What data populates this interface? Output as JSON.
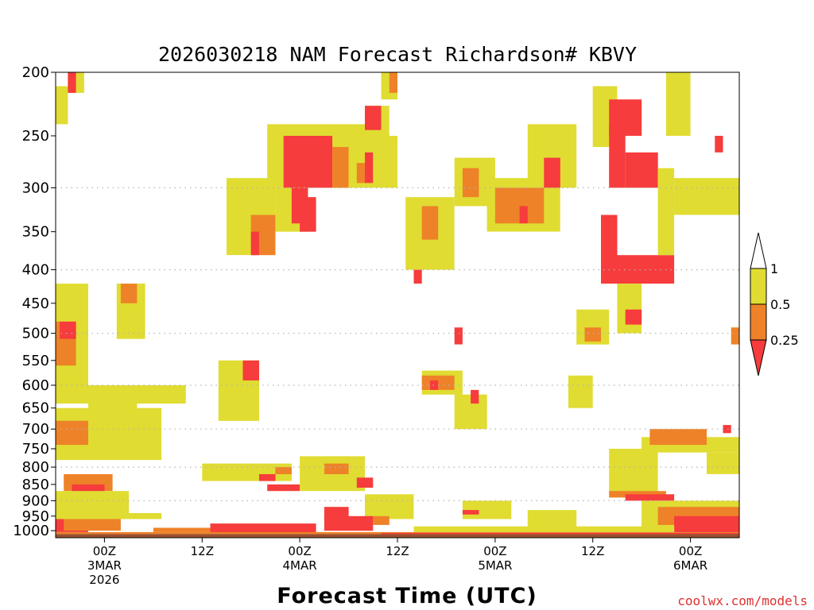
{
  "page": {
    "credit": "coolwx.com/models"
  },
  "colors": {
    "lt_025": "#f63c3c",
    "c025_05": "#ee8228",
    "c05_1": "#e0dc32",
    "ground": "#9a5030",
    "grid": "#b4b4b4"
  },
  "chart_data": {
    "type": "heatmap",
    "title": "2026030218 NAM Forecast Richardson# KBVY",
    "xlabel": "Forecast Time (UTC)",
    "ylabel": "",
    "x_unit": "hours since 2026-03-02 18Z",
    "xlim": [
      0,
      84
    ],
    "y_unit": "hPa",
    "ylim": [
      1025,
      200
    ],
    "y_scale": "log-pressure",
    "y_ticks": [
      200,
      250,
      300,
      350,
      400,
      450,
      500,
      550,
      600,
      650,
      700,
      750,
      800,
      850,
      900,
      950,
      1000
    ],
    "grid_levels": [
      300,
      400,
      500,
      600,
      700,
      800,
      900
    ],
    "x_ticks": [
      {
        "hour": 6,
        "lines": [
          "00Z",
          "3MAR",
          "2026"
        ]
      },
      {
        "hour": 18,
        "lines": [
          "12Z"
        ]
      },
      {
        "hour": 30,
        "lines": [
          "00Z",
          "4MAR"
        ]
      },
      {
        "hour": 42,
        "lines": [
          "12Z"
        ]
      },
      {
        "hour": 54,
        "lines": [
          "00Z",
          "5MAR"
        ]
      },
      {
        "hour": 66,
        "lines": [
          "12Z"
        ]
      },
      {
        "hour": 78,
        "lines": [
          "00Z",
          "6MAR"
        ]
      }
    ],
    "legend": {
      "placement": "right",
      "bins": [
        {
          "label": "< 0.25",
          "color_key": "lt_025"
        },
        {
          "label": "0.25 - 0.5",
          "color_key": "c025_05"
        },
        {
          "label": "0.5 - 1",
          "color_key": "c05_1"
        },
        {
          "label": "> 1 (white)",
          "color_key": "none"
        }
      ],
      "tick_labels": [
        "1",
        "0.5",
        "0.25"
      ]
    },
    "regions": [
      {
        "bin": "0.5-1",
        "x": [
          0,
          4
        ],
        "p": [
          420,
          640
        ]
      },
      {
        "bin": "0.25-0.5",
        "x": [
          0,
          2.5
        ],
        "p": [
          480,
          560
        ]
      },
      {
        "bin": "<0.25",
        "x": [
          0.5,
          2.5
        ],
        "p": [
          480,
          510
        ]
      },
      {
        "bin": "0.5-1",
        "x": [
          0,
          1.5
        ],
        "p": [
          210,
          240
        ]
      },
      {
        "bin": "0.5-1",
        "x": [
          1.5,
          3.5
        ],
        "p": [
          200,
          215
        ]
      },
      {
        "bin": "<0.25",
        "x": [
          1.5,
          2.5
        ],
        "p": [
          200,
          215
        ]
      },
      {
        "bin": "0.5-1",
        "x": [
          4,
          10
        ],
        "p": [
          600,
          680
        ]
      },
      {
        "bin": "0.5-1",
        "x": [
          7.5,
          11
        ],
        "p": [
          420,
          510
        ]
      },
      {
        "bin": "0.25-0.5",
        "x": [
          8,
          10
        ],
        "p": [
          420,
          450
        ]
      },
      {
        "bin": "0.5-1",
        "x": [
          10,
          16
        ],
        "p": [
          600,
          640
        ]
      },
      {
        "bin": "0.5-1",
        "x": [
          0,
          13
        ],
        "p": [
          650,
          780
        ]
      },
      {
        "bin": "0.25-0.5",
        "x": [
          0,
          4
        ],
        "p": [
          680,
          740
        ]
      },
      {
        "bin": "0.5-1",
        "x": [
          5,
          10
        ],
        "p": [
          600,
          650
        ]
      },
      {
        "bin": "0.25-0.5",
        "x": [
          1,
          7
        ],
        "p": [
          820,
          870
        ]
      },
      {
        "bin": "<0.25",
        "x": [
          2,
          6
        ],
        "p": [
          850,
          880
        ]
      },
      {
        "bin": "<0.25",
        "x": [
          0,
          4
        ],
        "p": [
          880,
          1005
        ]
      },
      {
        "bin": "0.5-1",
        "x": [
          0,
          9
        ],
        "p": [
          870,
          960
        ]
      },
      {
        "bin": "0.25-0.5",
        "x": [
          1,
          8
        ],
        "p": [
          960,
          1000
        ]
      },
      {
        "bin": "0.5-1",
        "x": [
          20,
          25
        ],
        "p": [
          550,
          680
        ]
      },
      {
        "bin": "<0.25",
        "x": [
          23,
          25
        ],
        "p": [
          550,
          590
        ]
      },
      {
        "bin": "0.5-1",
        "x": [
          21,
          27
        ],
        "p": [
          290,
          380
        ]
      },
      {
        "bin": "0.25-0.5",
        "x": [
          24,
          27
        ],
        "p": [
          330,
          380
        ]
      },
      {
        "bin": "<0.25",
        "x": [
          24,
          25
        ],
        "p": [
          350,
          380
        ]
      },
      {
        "bin": "0.5-1",
        "x": [
          26,
          38
        ],
        "p": [
          240,
          300
        ]
      },
      {
        "bin": "<0.25",
        "x": [
          28,
          34
        ],
        "p": [
          250,
          300
        ]
      },
      {
        "bin": "0.25-0.5",
        "x": [
          34,
          36
        ],
        "p": [
          260,
          300
        ]
      },
      {
        "bin": "0.5-1",
        "x": [
          27,
          31
        ],
        "p": [
          300,
          350
        ]
      },
      {
        "bin": "<0.25",
        "x": [
          29,
          31
        ],
        "p": [
          300,
          340
        ]
      },
      {
        "bin": "<0.25",
        "x": [
          30,
          32
        ],
        "p": [
          310,
          350
        ]
      },
      {
        "bin": "0.5-1",
        "x": [
          36,
          42
        ],
        "p": [
          250,
          300
        ]
      },
      {
        "bin": "0.25-0.5",
        "x": [
          37,
          38
        ],
        "p": [
          275,
          295
        ]
      },
      {
        "bin": "<0.25",
        "x": [
          38,
          39
        ],
        "p": [
          265,
          295
        ]
      },
      {
        "bin": "0.5-1",
        "x": [
          38,
          41
        ],
        "p": [
          225,
          250
        ]
      },
      {
        "bin": "<0.25",
        "x": [
          38,
          40
        ],
        "p": [
          225,
          245
        ]
      },
      {
        "bin": "0.5-1",
        "x": [
          40,
          42
        ],
        "p": [
          200,
          220
        ]
      },
      {
        "bin": "0.25-0.5",
        "x": [
          41,
          42
        ],
        "p": [
          200,
          215
        ]
      },
      {
        "bin": "0.5-1",
        "x": [
          43,
          49
        ],
        "p": [
          310,
          400
        ]
      },
      {
        "bin": "0.25-0.5",
        "x": [
          45,
          47
        ],
        "p": [
          320,
          360
        ]
      },
      {
        "bin": "<0.25",
        "x": [
          44,
          45
        ],
        "p": [
          400,
          420
        ]
      },
      {
        "bin": "0.5-1",
        "x": [
          49,
          54
        ],
        "p": [
          270,
          320
        ]
      },
      {
        "bin": "0.25-0.5",
        "x": [
          50,
          52
        ],
        "p": [
          280,
          310
        ]
      },
      {
        "bin": "0.5-1",
        "x": [
          53,
          62
        ],
        "p": [
          290,
          350
        ]
      },
      {
        "bin": "0.25-0.5",
        "x": [
          54,
          60
        ],
        "p": [
          300,
          340
        ]
      },
      {
        "bin": "<0.25",
        "x": [
          57,
          58
        ],
        "p": [
          320,
          340
        ]
      },
      {
        "bin": "0.5-1",
        "x": [
          58,
          64
        ],
        "p": [
          240,
          300
        ]
      },
      {
        "bin": "<0.25",
        "x": [
          60,
          62
        ],
        "p": [
          270,
          300
        ]
      },
      {
        "bin": "0.5-1",
        "x": [
          45,
          50
        ],
        "p": [
          570,
          620
        ]
      },
      {
        "bin": "0.25-0.5",
        "x": [
          45,
          49
        ],
        "p": [
          580,
          610
        ]
      },
      {
        "bin": "<0.25",
        "x": [
          46,
          47
        ],
        "p": [
          590,
          610
        ]
      },
      {
        "bin": "<0.25",
        "x": [
          49,
          50
        ],
        "p": [
          490,
          520
        ]
      },
      {
        "bin": "0.5-1",
        "x": [
          49,
          53
        ],
        "p": [
          620,
          700
        ]
      },
      {
        "bin": "<0.25",
        "x": [
          51,
          52
        ],
        "p": [
          610,
          640
        ]
      },
      {
        "bin": "0.5-1",
        "x": [
          63,
          66
        ],
        "p": [
          580,
          650
        ]
      },
      {
        "bin": "0.5-1",
        "x": [
          64,
          68
        ],
        "p": [
          460,
          520
        ]
      },
      {
        "bin": "0.25-0.5",
        "x": [
          65,
          67
        ],
        "p": [
          490,
          515
        ]
      },
      {
        "bin": "0.5-1",
        "x": [
          66,
          69
        ],
        "p": [
          210,
          260
        ]
      },
      {
        "bin": "<0.25",
        "x": [
          68,
          70
        ],
        "p": [
          240,
          300
        ]
      },
      {
        "bin": "<0.25",
        "x": [
          68,
          72
        ],
        "p": [
          220,
          250
        ]
      },
      {
        "bin": "<0.25",
        "x": [
          70,
          74
        ],
        "p": [
          265,
          300
        ]
      },
      {
        "bin": "<0.25",
        "x": [
          67,
          69
        ],
        "p": [
          330,
          420
        ]
      },
      {
        "bin": "<0.25",
        "x": [
          69,
          76
        ],
        "p": [
          380,
          420
        ]
      },
      {
        "bin": "0.5-1",
        "x": [
          69,
          72
        ],
        "p": [
          420,
          500
        ]
      },
      {
        "bin": "<0.25",
        "x": [
          70,
          72
        ],
        "p": [
          460,
          485
        ]
      },
      {
        "bin": "0.5-1",
        "x": [
          74,
          76
        ],
        "p": [
          280,
          380
        ]
      },
      {
        "bin": "0.5-1",
        "x": [
          75,
          78
        ],
        "p": [
          200,
          250
        ]
      },
      {
        "bin": "0.5-1",
        "x": [
          76,
          84
        ],
        "p": [
          290,
          330
        ]
      },
      {
        "bin": "<0.25",
        "x": [
          81,
          82
        ],
        "p": [
          250,
          265
        ]
      },
      {
        "bin": "0.5-1",
        "x": [
          68,
          74
        ],
        "p": [
          750,
          880
        ]
      },
      {
        "bin": "0.25-0.5",
        "x": [
          68,
          75
        ],
        "p": [
          870,
          890
        ]
      },
      {
        "bin": "<0.25",
        "x": [
          70,
          76
        ],
        "p": [
          880,
          900
        ]
      },
      {
        "bin": "0.5-1",
        "x": [
          72,
          84
        ],
        "p": [
          720,
          760
        ]
      },
      {
        "bin": "0.25-0.5",
        "x": [
          73,
          80
        ],
        "p": [
          700,
          740
        ]
      },
      {
        "bin": "<0.25",
        "x": [
          82,
          83
        ],
        "p": [
          690,
          710
        ]
      },
      {
        "bin": "0.5-1",
        "x": [
          80,
          84
        ],
        "p": [
          760,
          820
        ]
      },
      {
        "bin": "0.5-1",
        "x": [
          83,
          84
        ],
        "p": [
          490,
          520
        ]
      },
      {
        "bin": "0.25-0.5",
        "x": [
          83,
          84
        ],
        "p": [
          490,
          520
        ]
      },
      {
        "bin": "0.5-1",
        "x": [
          8,
          13
        ],
        "p": [
          940,
          960
        ]
      },
      {
        "bin": "0.5-1",
        "x": [
          18,
          29
        ],
        "p": [
          790,
          840
        ]
      },
      {
        "bin": "<0.25",
        "x": [
          25,
          27
        ],
        "p": [
          820,
          840
        ]
      },
      {
        "bin": "0.25-0.5",
        "x": [
          27,
          29
        ],
        "p": [
          800,
          820
        ]
      },
      {
        "bin": "<0.25",
        "x": [
          26,
          30
        ],
        "p": [
          850,
          870
        ]
      },
      {
        "bin": "0.5-1",
        "x": [
          30,
          38
        ],
        "p": [
          770,
          870
        ]
      },
      {
        "bin": "0.25-0.5",
        "x": [
          33,
          36
        ],
        "p": [
          790,
          820
        ]
      },
      {
        "bin": "<0.25",
        "x": [
          37,
          39
        ],
        "p": [
          830,
          860
        ]
      },
      {
        "bin": "0.5-1",
        "x": [
          38,
          44
        ],
        "p": [
          880,
          960
        ]
      },
      {
        "bin": "<0.25",
        "x": [
          33,
          36
        ],
        "p": [
          920,
          960
        ]
      },
      {
        "bin": "<0.25",
        "x": [
          33,
          39
        ],
        "p": [
          950,
          1000
        ]
      },
      {
        "bin": "0.25-0.5",
        "x": [
          39,
          41
        ],
        "p": [
          950,
          980
        ]
      },
      {
        "bin": "<0.25",
        "x": [
          19,
          32
        ],
        "p": [
          975,
          1005
        ]
      },
      {
        "bin": "0.25-0.5",
        "x": [
          12,
          19
        ],
        "p": [
          990,
          1005
        ]
      },
      {
        "bin": "0.5-1",
        "x": [
          50,
          56
        ],
        "p": [
          900,
          960
        ]
      },
      {
        "bin": "<0.25",
        "x": [
          50,
          52
        ],
        "p": [
          930,
          945
        ]
      },
      {
        "bin": "0.5-1",
        "x": [
          58,
          64
        ],
        "p": [
          930,
          990
        ]
      },
      {
        "bin": "0.5-1",
        "x": [
          72,
          84
        ],
        "p": [
          900,
          990
        ]
      },
      {
        "bin": "0.25-0.5",
        "x": [
          74,
          84
        ],
        "p": [
          920,
          980
        ]
      },
      {
        "bin": "<0.25",
        "x": [
          76,
          84
        ],
        "p": [
          950,
          1005
        ]
      },
      {
        "bin": "0.5-1",
        "x": [
          44,
          76
        ],
        "p": [
          985,
          1005
        ]
      },
      {
        "bin": "0.25-0.5",
        "x": [
          0,
          84
        ],
        "p": [
          1005,
          1012
        ]
      },
      {
        "bin": "<0.25",
        "x": [
          40,
          84
        ],
        "p": [
          1008,
          1012
        ]
      }
    ],
    "ground_from_hPa": 1012
  }
}
